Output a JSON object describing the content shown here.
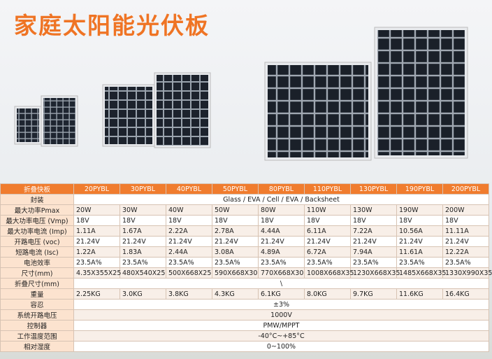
{
  "header": {
    "title": "家庭太阳能光伏板"
  },
  "table": {
    "header": [
      "折叠快板",
      "20PYBL",
      "30PYBL",
      "40PYBL",
      "50PYBL",
      "80PYBL",
      "110PYBL",
      "130PYBL",
      "190PYBL",
      "200PYBL"
    ],
    "rows": [
      [
        "封装",
        "Glass / EVA / Cell / EVA / Backsheet"
      ],
      [
        "最大功率Pmax",
        "20W",
        "30W",
        "40W",
        "50W",
        "80W",
        "110W",
        "130W",
        "190W",
        "200W"
      ],
      [
        "最大功率电压 (Vmp)",
        "18V",
        "18V",
        "18V",
        "18V",
        "18V",
        "18V",
        "18V",
        "18V",
        "18V"
      ],
      [
        "最大功率电流 (Imp)",
        "1.11A",
        "1.67A",
        "2.22A",
        "2.78A",
        "4.44A",
        "6.11A",
        "7.22A",
        "10.56A",
        "11.11A"
      ],
      [
        "开路电压 (voc)",
        "21.24V",
        "21.24V",
        "21.24V",
        "21.24V",
        "21.24V",
        "21.24V",
        "21.24V",
        "21.24V",
        "21.24V"
      ],
      [
        "短路电流 (Isc)",
        "1.22A",
        "1.83A",
        "2.44A",
        "3.08A",
        "4.89A",
        "6.72A",
        "7.94A",
        "11.61A",
        "12.22A"
      ],
      [
        "电池效率",
        "23.5A%",
        "23.5A%",
        "23.5A%",
        "23.5A%",
        "23.5A%",
        "23.5A%",
        "23.5A%",
        "23.5A%",
        "23.5A%"
      ],
      [
        "尺寸(mm)",
        "4.35X355X25",
        "480X540X25",
        "500X668X25",
        "590X668X30",
        "770X668X30",
        "1008X668X35",
        "1230X668X35",
        "1485X668X35",
        "1330X990X35"
      ],
      [
        "折叠尺寸(mm)",
        "\\"
      ],
      [
        "重量",
        "2.25KG",
        "3.0KG",
        "3.8KG",
        "4.3KG",
        "6.1KG",
        "8.0KG",
        "9.7KG",
        "11.6KG",
        "16.4KG"
      ],
      [
        "容忍",
        "±3%"
      ],
      [
        "系统开路电压",
        "1000V"
      ],
      [
        "控制器",
        "PMW/MPPT"
      ],
      [
        "工作温度范围",
        "-40°C~+85°C"
      ],
      [
        "相对湿度",
        "0~100%"
      ]
    ]
  }
}
